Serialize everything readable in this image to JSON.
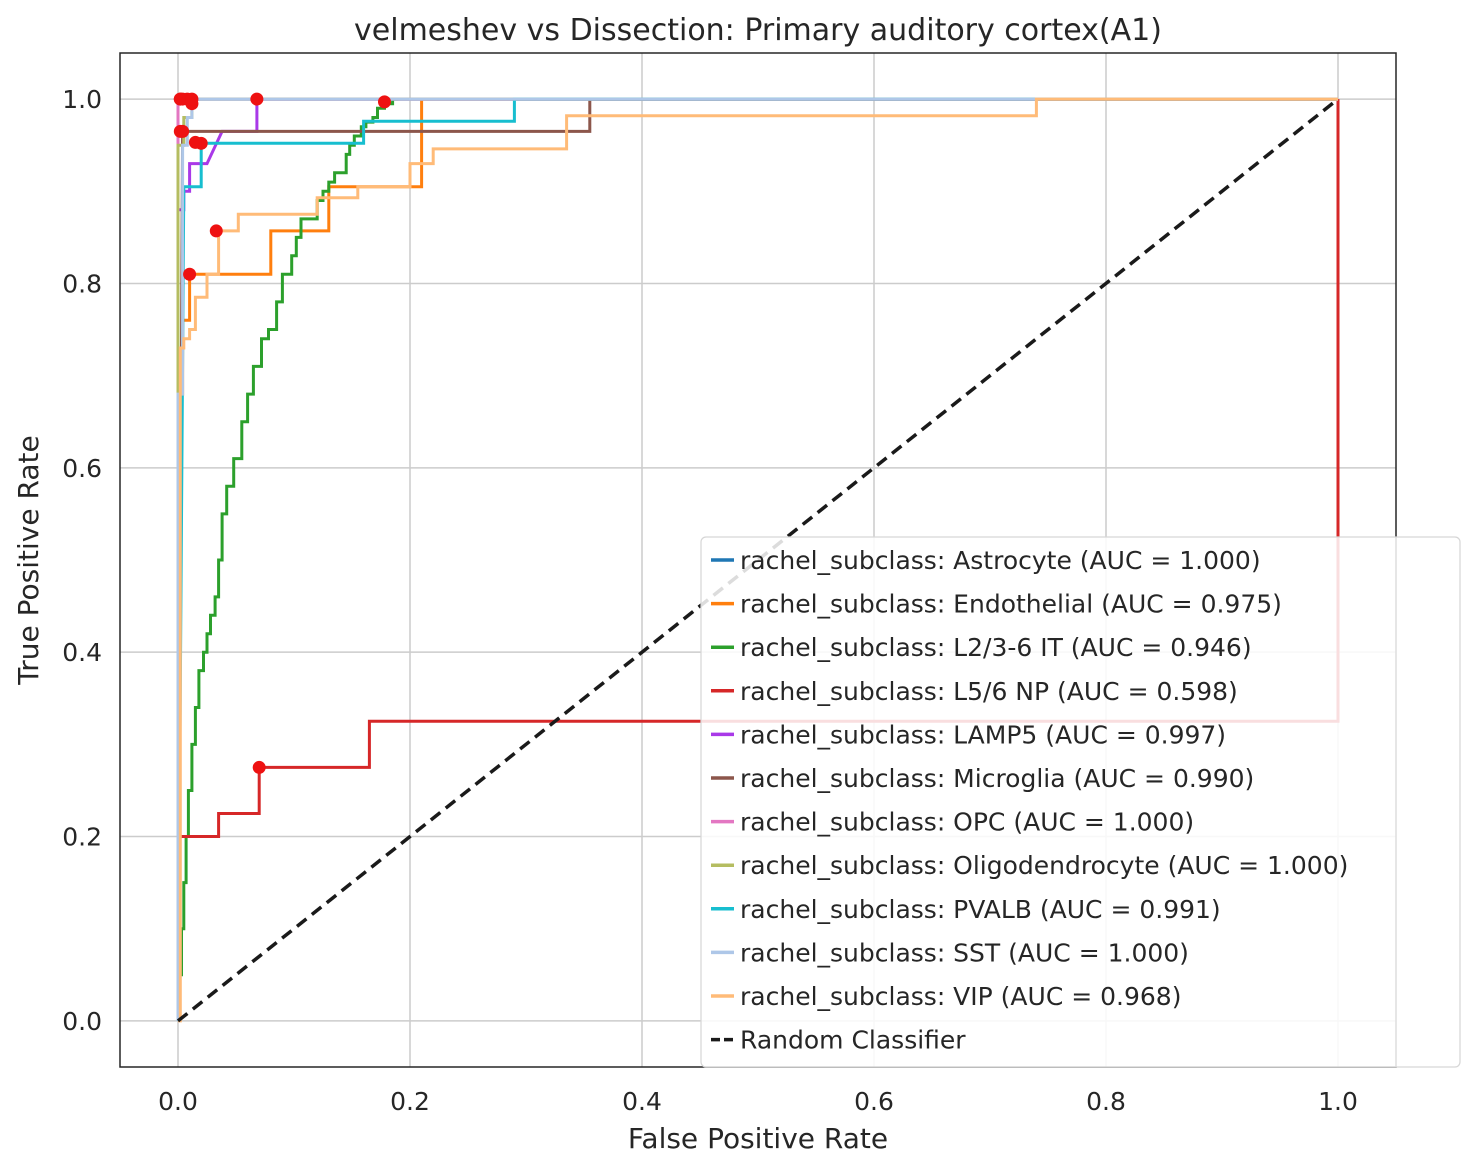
{
  "chart_data": {
    "type": "line",
    "title": "velmeshev vs Dissection: Primary auditory cortex(A1)",
    "xlabel": "False Positive Rate",
    "ylabel": "True Positive Rate",
    "xlim": [
      -0.05,
      1.05
    ],
    "ylim": [
      -0.05,
      1.05
    ],
    "xticks": [
      0.0,
      0.2,
      0.4,
      0.6,
      0.8,
      1.0
    ],
    "yticks": [
      0.0,
      0.2,
      0.4,
      0.6,
      0.8,
      1.0
    ],
    "xtick_labels": [
      "0.0",
      "0.2",
      "0.4",
      "0.6",
      "0.8",
      "1.0"
    ],
    "ytick_labels": [
      "0.0",
      "0.2",
      "0.4",
      "0.6",
      "0.8",
      "1.0"
    ],
    "grid": true,
    "legend_position": "lower-right",
    "series": [
      {
        "name": "rachel_subclass: Astrocyte (AUC = 1.000)",
        "color": "#1f77b4",
        "x": [
          0,
          0,
          0.002,
          1
        ],
        "y": [
          0,
          1.0,
          1.0,
          1.0
        ],
        "marker": [
          0.002,
          1.0
        ]
      },
      {
        "name": "rachel_subclass: Endothelial (AUC = 0.975)",
        "color": "#ff7f0e",
        "x": [
          0,
          0,
          0.002,
          0.002,
          0.004,
          0.004,
          0.01,
          0.01,
          0.08,
          0.08,
          0.13,
          0.13,
          0.21,
          0.21,
          1
        ],
        "y": [
          0,
          0.48,
          0.48,
          0.68,
          0.68,
          0.76,
          0.76,
          0.81,
          0.81,
          0.857,
          0.857,
          0.905,
          0.905,
          1.0,
          1.0
        ],
        "marker": [
          0.01,
          0.81
        ]
      },
      {
        "name": "rachel_subclass: L2/3-6 IT (AUC = 0.946)",
        "color": "#2ca02c",
        "x": [
          0,
          0.003,
          0.003,
          0.005,
          0.005,
          0.007,
          0.007,
          0.009,
          0.009,
          0.012,
          0.012,
          0.015,
          0.015,
          0.018,
          0.018,
          0.022,
          0.022,
          0.025,
          0.025,
          0.028,
          0.028,
          0.032,
          0.032,
          0.035,
          0.035,
          0.038,
          0.038,
          0.042,
          0.042,
          0.048,
          0.048,
          0.055,
          0.055,
          0.06,
          0.06,
          0.065,
          0.065,
          0.072,
          0.072,
          0.078,
          0.078,
          0.085,
          0.085,
          0.09,
          0.09,
          0.098,
          0.098,
          0.102,
          0.102,
          0.106,
          0.106,
          0.12,
          0.12,
          0.125,
          0.125,
          0.13,
          0.13,
          0.135,
          0.135,
          0.145,
          0.145,
          0.148,
          0.148,
          0.152,
          0.152,
          0.158,
          0.158,
          0.162,
          0.162,
          0.168,
          0.168,
          0.172,
          0.172,
          0.178,
          0.178,
          0.185,
          0.185,
          0.19
        ],
        "y": [
          0.05,
          0.05,
          0.1,
          0.1,
          0.15,
          0.15,
          0.2,
          0.2,
          0.25,
          0.25,
          0.3,
          0.3,
          0.34,
          0.34,
          0.38,
          0.38,
          0.4,
          0.4,
          0.42,
          0.42,
          0.44,
          0.44,
          0.46,
          0.46,
          0.5,
          0.5,
          0.55,
          0.55,
          0.58,
          0.58,
          0.61,
          0.61,
          0.65,
          0.65,
          0.68,
          0.68,
          0.71,
          0.71,
          0.74,
          0.74,
          0.75,
          0.75,
          0.78,
          0.78,
          0.81,
          0.81,
          0.83,
          0.83,
          0.85,
          0.85,
          0.87,
          0.87,
          0.89,
          0.89,
          0.9,
          0.9,
          0.91,
          0.91,
          0.92,
          0.92,
          0.94,
          0.94,
          0.95,
          0.95,
          0.96,
          0.96,
          0.97,
          0.97,
          0.975,
          0.975,
          0.98,
          0.98,
          0.99,
          0.99,
          0.995,
          0.995,
          1.0,
          1.0
        ],
        "marker": [
          0.178,
          0.997
        ]
      },
      {
        "name": "rachel_subclass: L5/6 NP (AUC = 0.598)",
        "color": "#d62728",
        "x": [
          0,
          0,
          0.035,
          0.035,
          0.07,
          0.07,
          0.165,
          0.165,
          1,
          1
        ],
        "y": [
          0,
          0.2,
          0.2,
          0.225,
          0.225,
          0.275,
          0.275,
          0.325,
          0.325,
          1.0
        ],
        "marker": [
          0.07,
          0.275
        ]
      },
      {
        "name": "rachel_subclass: LAMP5 (AUC = 0.997)",
        "color": "#a939e8",
        "x": [
          0,
          0.005,
          0.005,
          0.01,
          0.01,
          0.015,
          0.015,
          0.025,
          0.025,
          0.038,
          0.038,
          0.068,
          0.068,
          1
        ],
        "y": [
          0.88,
          0.88,
          0.9,
          0.9,
          0.93,
          0.93,
          0.93,
          0.93,
          0.93,
          0.965,
          0.965,
          0.965,
          1.0,
          1.0
        ],
        "marker": [
          0.068,
          1.0
        ]
      },
      {
        "name": "rachel_subclass: Microglia (AUC = 0.990)",
        "color": "#8c564b",
        "x": [
          0,
          0.004,
          0.004,
          0.355,
          0.355,
          1
        ],
        "y": [
          0,
          0.965,
          0.965,
          0.965,
          1.0,
          1.0
        ],
        "marker": [
          0.004,
          0.965
        ]
      },
      {
        "name": "rachel_subclass: OPC (AUC = 1.000)",
        "color": "#e377c2",
        "x": [
          0,
          0,
          0.004,
          1
        ],
        "y": [
          0,
          1.0,
          1.0,
          1.0
        ],
        "marker": [
          0.004,
          1.0
        ]
      },
      {
        "name": "rachel_subclass: Oligodendrocyte (AUC = 1.000)",
        "color": "#b5bd61",
        "x": [
          0,
          0,
          0.005,
          0.005,
          0.012,
          0.012,
          0.02,
          1
        ],
        "y": [
          0,
          0.95,
          0.95,
          0.98,
          0.98,
          1.0,
          1.0,
          1.0
        ],
        "marker": [
          0.012,
          0.995
        ]
      },
      {
        "name": "rachel_subclass: PVALB (AUC = 0.991)",
        "color": "#17becf",
        "x": [
          0,
          0.005,
          0.005,
          0.02,
          0.02,
          0.16,
          0.16,
          0.29,
          0.29,
          1
        ],
        "y": [
          0,
          0.905,
          0.905,
          0.905,
          0.952,
          0.952,
          0.976,
          0.976,
          1.0,
          1.0
        ],
        "marker": [
          0.02,
          0.952
        ]
      },
      {
        "name": "rachel_subclass: SST (AUC = 1.000)",
        "color": "#aec7e8",
        "x": [
          0,
          0,
          0.004,
          0.004,
          0.008,
          0.008,
          0.012,
          0.012,
          1
        ],
        "y": [
          0,
          0.68,
          0.68,
          0.95,
          0.95,
          0.98,
          0.98,
          1.0,
          1.0
        ],
        "marker": [
          0.008,
          1.0
        ]
      },
      {
        "name": "rachel_subclass: VIP (AUC = 0.968)",
        "color": "#ffbb78",
        "x": [
          0,
          0.002,
          0.002,
          0.005,
          0.005,
          0.01,
          0.01,
          0.015,
          0.015,
          0.025,
          0.025,
          0.035,
          0.035,
          0.052,
          0.052,
          0.12,
          0.12,
          0.155,
          0.155,
          0.2,
          0.2,
          0.22,
          0.22,
          0.335,
          0.335,
          0.74,
          0.74,
          1
        ],
        "y": [
          0,
          0.0,
          0.73,
          0.73,
          0.74,
          0.74,
          0.75,
          0.75,
          0.785,
          0.785,
          0.81,
          0.81,
          0.857,
          0.857,
          0.875,
          0.875,
          0.893,
          0.893,
          0.905,
          0.905,
          0.93,
          0.93,
          0.946,
          0.946,
          0.982,
          0.982,
          1.0,
          1.0
        ],
        "marker": [
          0.033,
          0.857
        ]
      }
    ],
    "extra_markers": [
      [
        0.002,
        1.0
      ],
      [
        0.012,
        1.0
      ],
      [
        0.002,
        0.965
      ],
      [
        0.015,
        0.953
      ]
    ],
    "random_classifier": {
      "name": "Random Classifier",
      "color": "#1a1a1a",
      "x": [
        0,
        1
      ],
      "y": [
        0,
        1
      ]
    }
  }
}
